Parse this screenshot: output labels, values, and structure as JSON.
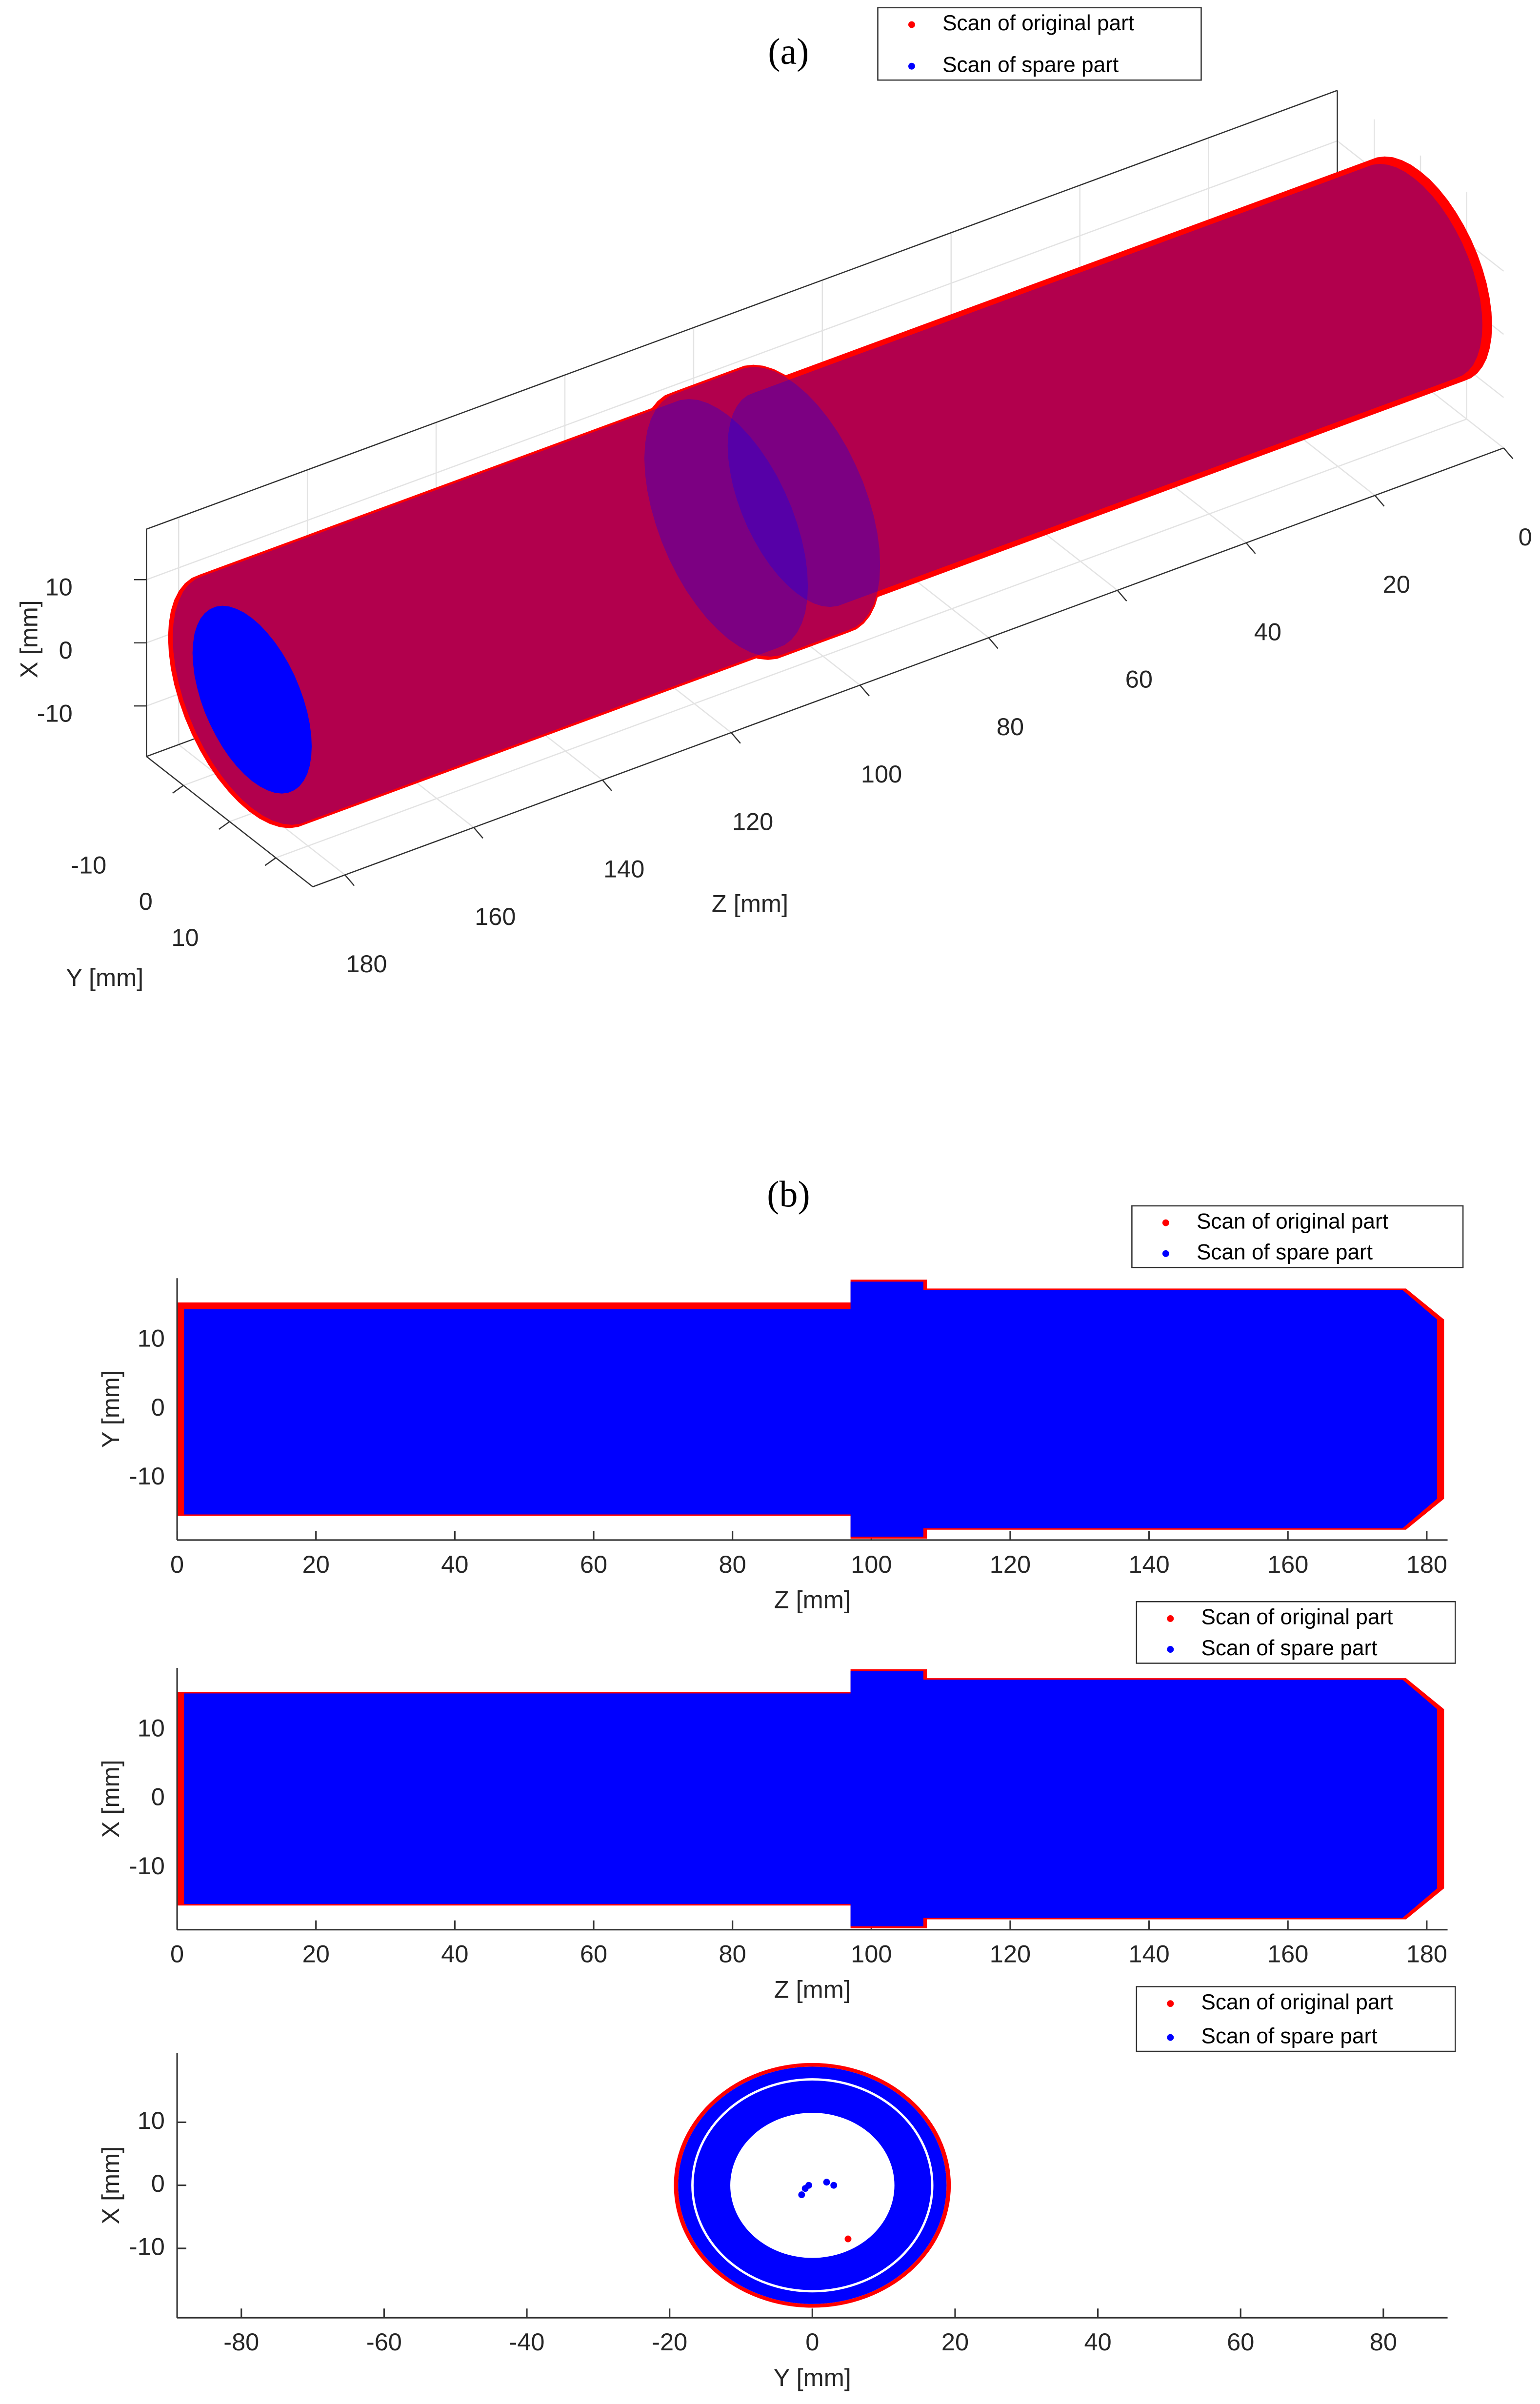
{
  "chart_data": [
    {
      "type": "scatter3d",
      "title": "(a)",
      "xlabel": "X [mm]",
      "ylabel": "Y [mm]",
      "zlabel": "Z [mm]",
      "xlim": [
        -18,
        18
      ],
      "ylim": [
        -18,
        18
      ],
      "zlim": [
        0,
        185
      ],
      "xticks": [
        -10,
        0,
        10
      ],
      "yticks": [
        -10,
        0,
        10
      ],
      "zticks": [
        0,
        20,
        40,
        60,
        80,
        100,
        120,
        140,
        160,
        180
      ],
      "grid": true,
      "series": [
        {
          "name": "Scan of original part",
          "color": "#ff0000",
          "profile_z": [
            0,
            97,
            97,
            108,
            108,
            182
          ],
          "profile_r": [
            15.5,
            15.5,
            18.5,
            18.5,
            17.5,
            17.5
          ]
        },
        {
          "name": "Scan of spare part",
          "color": "#0000ff",
          "profile_z": [
            1,
            97,
            97,
            107.5,
            107.5,
            181.5
          ],
          "profile_r": [
            14.8,
            14.8,
            18.2,
            18.2,
            17.2,
            17.2
          ]
        }
      ]
    },
    {
      "type": "outline",
      "title": "(b)",
      "xlabel": "Z [mm]",
      "ylabel": "Y [mm]",
      "xlim": [
        0,
        183
      ],
      "ylim": [
        -19,
        19
      ],
      "xticks": [
        0,
        20,
        40,
        60,
        80,
        100,
        120,
        140,
        160,
        180
      ],
      "yticks": [
        -10,
        0,
        10
      ],
      "series": [
        {
          "name": "Scan of original part",
          "color": "#ff0000",
          "x": [
            0,
            0,
            97,
            97,
            108,
            108,
            177,
            182.5,
            182.5,
            177,
            108,
            108,
            97,
            97
          ],
          "y": [
            -15.5,
            15.5,
            15.5,
            18.8,
            18.8,
            17.5,
            17.5,
            13,
            -13,
            -17.5,
            -17.5,
            -18.8,
            -18.8,
            -15.5
          ]
        },
        {
          "name": "Scan of spare part",
          "color": "#0000ff",
          "x": [
            1,
            1,
            97,
            97,
            107.5,
            107.5,
            176.5,
            181.5,
            181.5,
            176.5,
            107.5,
            107.5,
            97,
            97
          ],
          "y": [
            -15.3,
            14.5,
            14.5,
            18.5,
            18.5,
            17.3,
            17.3,
            13,
            -13,
            -17.3,
            -17.3,
            -18.5,
            -18.5,
            -15.3
          ]
        }
      ]
    },
    {
      "type": "outline",
      "xlabel": "Z [mm]",
      "ylabel": "X [mm]",
      "xlim": [
        0,
        183
      ],
      "ylim": [
        -19,
        19
      ],
      "xticks": [
        0,
        20,
        40,
        60,
        80,
        100,
        120,
        140,
        160,
        180
      ],
      "yticks": [
        -10,
        0,
        10
      ],
      "series": [
        {
          "name": "Scan of original part",
          "color": "#ff0000",
          "x": [
            0,
            0,
            97,
            97,
            108,
            108,
            177,
            182.5,
            182.5,
            177,
            108,
            108,
            97,
            97
          ],
          "y": [
            -15.5,
            15.5,
            15.5,
            18.8,
            18.8,
            17.5,
            17.5,
            13,
            -13,
            -17.5,
            -17.5,
            -18.8,
            -18.8,
            -15.5
          ]
        },
        {
          "name": "Scan of spare part",
          "color": "#0000ff",
          "x": [
            1,
            1,
            97,
            97,
            107.5,
            107.5,
            176.5,
            181.5,
            181.5,
            176.5,
            107.5,
            107.5,
            97,
            97
          ],
          "y": [
            -15.3,
            15.3,
            15.3,
            18.5,
            18.5,
            17.3,
            17.3,
            13,
            -13,
            -17.3,
            -17.3,
            -18.5,
            -18.5,
            -15.3
          ]
        }
      ]
    },
    {
      "type": "ring",
      "xlabel": "Y [mm]",
      "ylabel": "X [mm]",
      "xlim": [
        -89,
        89
      ],
      "ylim": [
        -21,
        21
      ],
      "xticks": [
        -80,
        -60,
        -40,
        -20,
        0,
        20,
        40,
        60,
        80
      ],
      "yticks": [
        -10,
        0,
        10
      ],
      "series": [
        {
          "name": "Scan of original part",
          "color": "#ff0000",
          "r_outer": 19.4,
          "r_inner": 18.8,
          "x": [
            5
          ],
          "y": [
            -8.5
          ]
        },
        {
          "name": "Scan of spare part",
          "color": "#0000ff",
          "r_outer": 18.8,
          "r_inner": 11.5,
          "x": [
            -1,
            -0.5,
            2,
            3,
            -1.5
          ],
          "y": [
            -0.5,
            0,
            0.5,
            0,
            -1.5
          ]
        }
      ]
    }
  ]
}
